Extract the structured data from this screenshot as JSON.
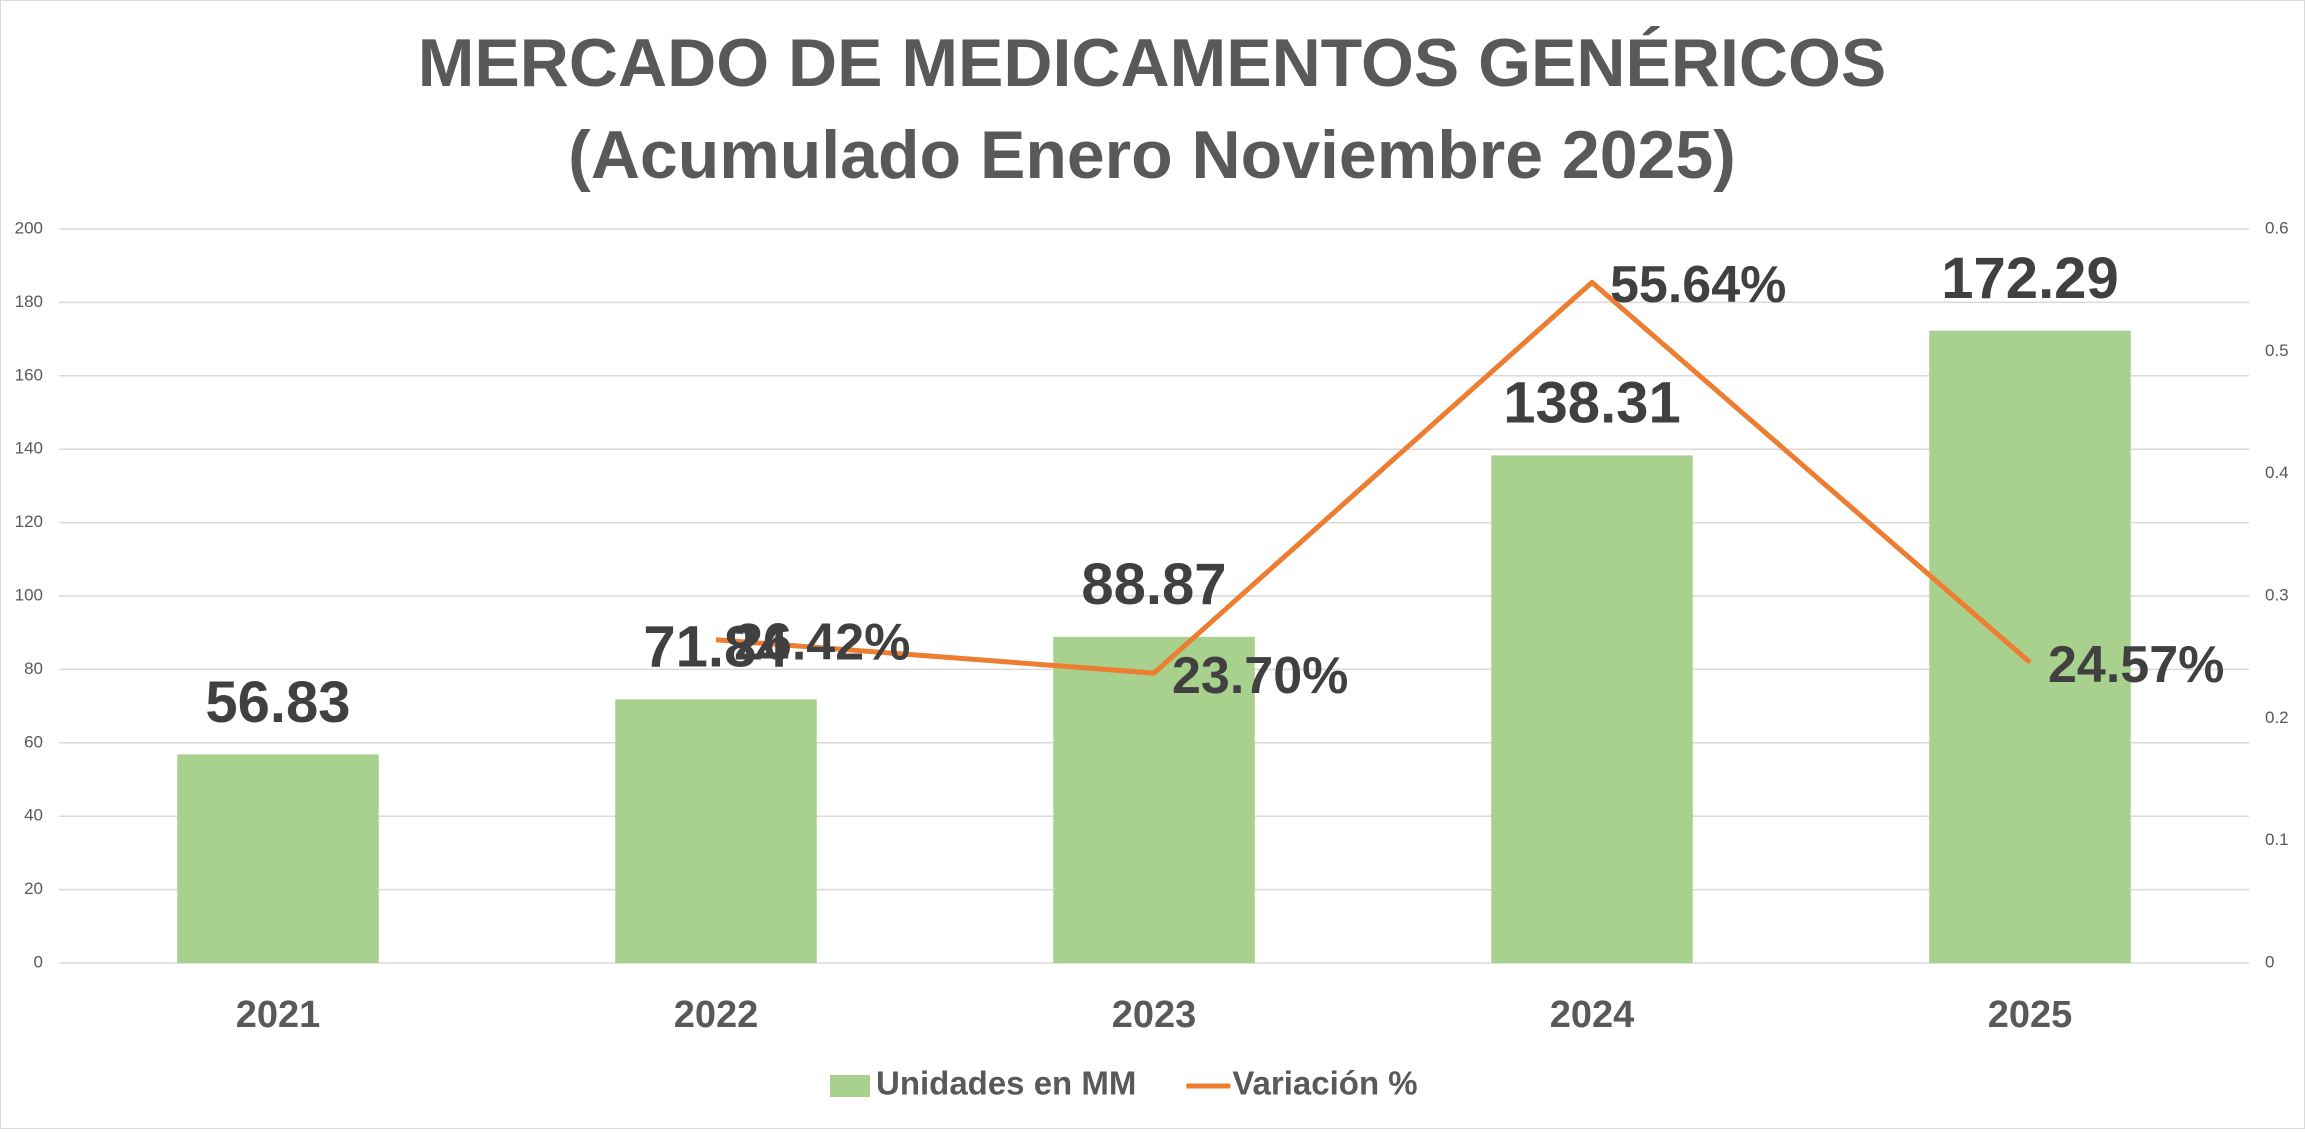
{
  "chart_data": {
    "type": "bar-line",
    "title": "MERCADO DE MEDICAMENTOS GENÉRICOS",
    "subtitle": "(Acumulado Enero Noviembre 2025)",
    "categories": [
      "2021",
      "2022",
      "2023",
      "2024",
      "2025"
    ],
    "series": [
      {
        "name": "Unidades en MM",
        "type": "bar",
        "color": "#a9d18e",
        "values": [
          56.83,
          71.84,
          88.87,
          138.31,
          172.29
        ]
      },
      {
        "name": "Variación %",
        "type": "line",
        "axis": "y2",
        "color": "#ed7d31",
        "values": [
          null,
          0.2642,
          0.237,
          0.5564,
          0.2457
        ],
        "value_labels": [
          null,
          "26.42%",
          "23.70%",
          "55.64%",
          "24.57%"
        ]
      }
    ],
    "ylim": [
      0,
      200
    ],
    "yticks": [
      0,
      20,
      40,
      60,
      80,
      100,
      120,
      140,
      160,
      180,
      200
    ],
    "y2lim": [
      0,
      0.6
    ],
    "y2ticks": [
      0,
      0.1,
      0.2,
      0.3,
      0.4,
      0.5,
      0.6
    ],
    "grid": true,
    "legend": "bottom"
  }
}
